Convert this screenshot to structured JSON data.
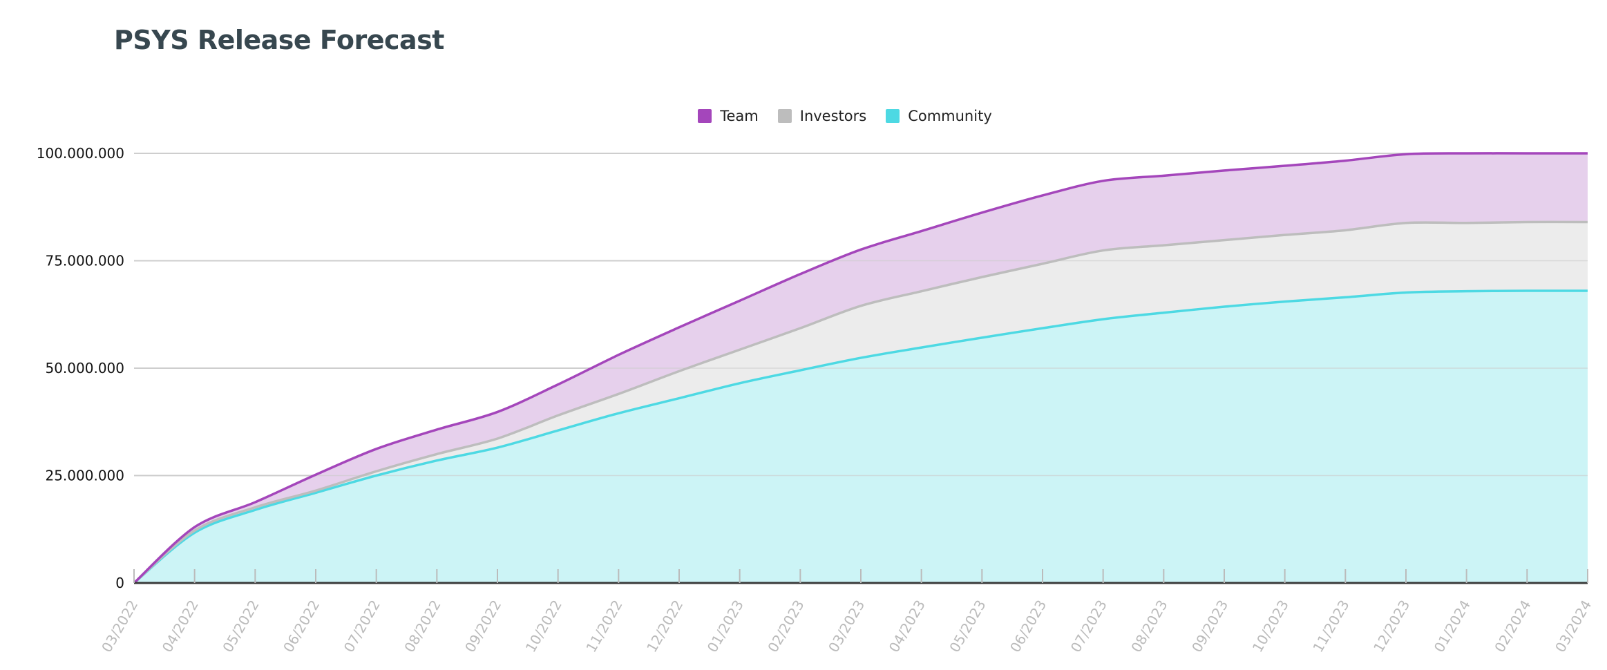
{
  "chart_data": {
    "type": "area",
    "stacked": true,
    "title": "PSYS Release Forecast",
    "xlabel": "",
    "ylabel": "",
    "ylim": [
      0,
      100000000
    ],
    "yticks": [
      "0",
      "25.000.000",
      "50.000.000",
      "75.000.000",
      "100.000.000"
    ],
    "ytick_values": [
      0,
      25000000,
      50000000,
      75000000,
      100000000
    ],
    "grid": true,
    "legend_position": "top-center",
    "categories": [
      "03/2022",
      "04/2022",
      "05/2022",
      "06/2022",
      "07/2022",
      "08/2022",
      "09/2022",
      "10/2022",
      "11/2022",
      "12/2022",
      "01/2023",
      "02/2023",
      "03/2023",
      "04/2023",
      "05/2023",
      "06/2023",
      "07/2023",
      "08/2023",
      "09/2023",
      "10/2023",
      "11/2023",
      "12/2023",
      "01/2024",
      "02/2024",
      "03/2024"
    ],
    "series": [
      {
        "name": "Community",
        "color": "#4dd9e3",
        "fill": "#ccf4f6",
        "values": [
          0,
          11700000,
          17000000,
          21000000,
          25000000,
          28500000,
          31500000,
          35500000,
          39500000,
          43000000,
          46500000,
          49500000,
          52400000,
          54800000,
          57100000,
          59300000,
          61400000,
          62900000,
          64300000,
          65500000,
          66500000,
          67600000,
          67900000,
          68000000,
          68000000
        ]
      },
      {
        "name": "Investors",
        "color": "#bdbdbd",
        "fill": "#ececec",
        "values": [
          0,
          500000,
          600000,
          500000,
          1000000,
          1500000,
          2100000,
          3500000,
          4500000,
          6300000,
          7800000,
          9800000,
          12100000,
          13100000,
          14100000,
          15000000,
          16000000,
          15700000,
          15500000,
          15500000,
          15600000,
          16200000,
          15900000,
          16000000,
          16000000
        ]
      },
      {
        "name": "Team",
        "color": "#a446bb",
        "fill": "#e6d0ec",
        "values": [
          0,
          800000,
          1200000,
          3700000,
          5200000,
          5700000,
          6200000,
          7200000,
          9100000,
          10200000,
          11400000,
          12600000,
          13100000,
          14000000,
          15000000,
          15900000,
          16200000,
          16200000,
          16200000,
          16100000,
          16200000,
          16000000,
          16200000,
          16000000,
          16000000
        ]
      }
    ]
  },
  "legend_order": [
    "Team",
    "Investors",
    "Community"
  ]
}
